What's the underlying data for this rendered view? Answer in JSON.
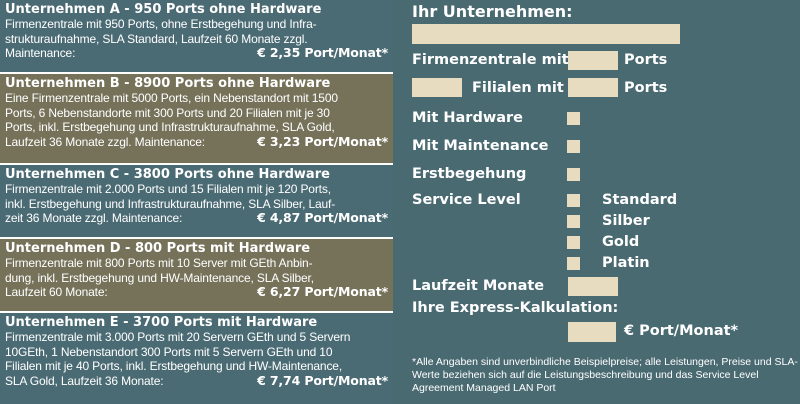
{
  "offers": [
    {
      "title": "Unternehmen A - 950 Ports ohne Hardware",
      "lines": [
        "Firmenzentrale mit 950 Ports, ohne Erstbegehung und Infra-",
        "strukturaufnahme, SLA Standard, Laufzeit 60 Monate zzgl."
      ],
      "last": "Maintenance:",
      "price": "€ 2,35 Port/Monat*"
    },
    {
      "title": "Unternehmen B - 8900 Ports ohne Hardware",
      "lines": [
        "Eine Firmenzentrale mit 5000 Ports, ein Nebenstandort mit 1500",
        "Ports, 6 Nebenstandorte mit 300 Ports und 20 Filialen mit je 30",
        "Ports, inkl. Erstbegehung und Infrastrukturaufnahme, SLA Gold,"
      ],
      "last": "Laufzeit 36 Monate zzgl. Maintenance:",
      "price": "€ 3,23 Port/Monat*"
    },
    {
      "title": "Unternehmen C - 3800 Ports ohne Hardware",
      "lines": [
        "Firmenzentrale mit 2.000 Ports und 15 Filialen mit je 120 Ports,",
        "inkl. Erstbegehung und Infrastrukturaufnahme, SLA Silber, Lauf-"
      ],
      "last": "zeit 36 Monate zzgl. Maintenance:",
      "price": "€ 4,87 Port/Monat*"
    },
    {
      "title": "Unternehmen D - 800 Ports mit Hardware",
      "lines": [
        "Firmenzentrale mit 800 Ports mit 10 Server mit GEth Anbin-",
        "dung, inkl. Erstbegehung und HW-Maintenance, SLA Silber,"
      ],
      "last": "Laufzeit 60 Monate:",
      "price": "€ 6,27 Port/Monat*"
    },
    {
      "title": "Unternehmen E - 3700 Ports mit Hardware",
      "lines": [
        "Firmenzentrale mit 3.000 Ports mit 20 Servern GEth und 5 Servern",
        "10GEth, 1 Nebenstandort 300 Ports mit 5 Servern GEth und 10",
        "Filialen mit je 40 Ports, inkl. Erstbegehung und HW-Maintenance,"
      ],
      "last": "SLA Gold, Laufzeit 36 Monate:",
      "price": "€ 7,74 Port/Monat*"
    }
  ],
  "form": {
    "company_label": "Ihr Unternehmen:",
    "hq_label": "Firmenzentrale mit",
    "ports1": "Ports",
    "branches_label": "Filialen mit",
    "ports2": "Ports",
    "hardware": "Mit Hardware",
    "maintenance": "Mit Maintenance",
    "inspection": "Erstbegehung",
    "service_level": "Service Level",
    "sla_options": [
      "Standard",
      "Silber",
      "Gold",
      "Platin"
    ],
    "term": "Laufzeit Monate",
    "calc": "Ihre Express-Kalkulation:",
    "result_unit": "€ Port/Monat*",
    "footnote": "*Alle Angaben sind unverbindliche Beispielpreise; alle Leistungen, Preise und SLA-Werte beziehen sich auf die Leistungsbeschreibung und das Service Level Agreement Managed LAN Port"
  }
}
